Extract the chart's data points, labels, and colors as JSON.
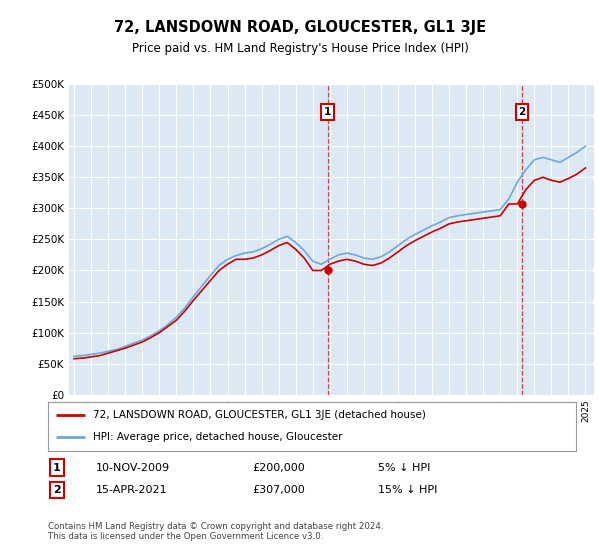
{
  "title": "72, LANSDOWN ROAD, GLOUCESTER, GL1 3JE",
  "subtitle": "Price paid vs. HM Land Registry's House Price Index (HPI)",
  "legend_line1": "72, LANSDOWN ROAD, GLOUCESTER, GL1 3JE (detached house)",
  "legend_line2": "HPI: Average price, detached house, Gloucester",
  "sale1_label": "1",
  "sale1_date": "10-NOV-2009",
  "sale1_price": "£200,000",
  "sale1_hpi": "5% ↓ HPI",
  "sale1_x": 2009.87,
  "sale1_y": 200000,
  "sale2_label": "2",
  "sale2_date": "15-APR-2021",
  "sale2_price": "£307,000",
  "sale2_hpi": "15% ↓ HPI",
  "sale2_x": 2021.29,
  "sale2_y": 307000,
  "footer": "Contains HM Land Registry data © Crown copyright and database right 2024.\nThis data is licensed under the Open Government Licence v3.0.",
  "hpi_color": "#6fa8d6",
  "price_color": "#cc0000",
  "marker_color": "#cc0000",
  "vline_color": "#cc4444",
  "box_color": "#cc0000",
  "ylim": [
    0,
    500000
  ],
  "xlim": [
    1994.7,
    2025.5
  ],
  "yticks": [
    0,
    50000,
    100000,
    150000,
    200000,
    250000,
    300000,
    350000,
    400000,
    450000,
    500000
  ],
  "background_color": "#dce9f5",
  "grid_color": "#ffffff",
  "hpi_data_x": [
    1995,
    1995.5,
    1996,
    1996.5,
    1997,
    1997.5,
    1998,
    1998.5,
    1999,
    1999.5,
    2000,
    2000.5,
    2001,
    2001.5,
    2002,
    2002.5,
    2003,
    2003.5,
    2004,
    2004.5,
    2005,
    2005.5,
    2006,
    2006.5,
    2007,
    2007.5,
    2008,
    2008.5,
    2009,
    2009.5,
    2010,
    2010.5,
    2011,
    2011.5,
    2012,
    2012.5,
    2013,
    2013.5,
    2014,
    2014.5,
    2015,
    2015.5,
    2016,
    2016.5,
    2017,
    2017.5,
    2018,
    2018.5,
    2019,
    2019.5,
    2020,
    2020.5,
    2021,
    2021.5,
    2022,
    2022.5,
    2023,
    2023.5,
    2024,
    2024.5,
    2025
  ],
  "hpi_data_y": [
    62000,
    63000,
    65000,
    67000,
    70000,
    73000,
    78000,
    83000,
    88000,
    95000,
    103000,
    113000,
    125000,
    140000,
    158000,
    175000,
    192000,
    208000,
    218000,
    224000,
    228000,
    230000,
    235000,
    242000,
    250000,
    255000,
    245000,
    232000,
    215000,
    210000,
    218000,
    225000,
    228000,
    225000,
    220000,
    218000,
    222000,
    230000,
    240000,
    250000,
    258000,
    265000,
    272000,
    278000,
    285000,
    288000,
    290000,
    292000,
    294000,
    296000,
    298000,
    315000,
    342000,
    362000,
    378000,
    382000,
    378000,
    374000,
    382000,
    390000,
    400000
  ],
  "price_data_x": [
    1995,
    1995.5,
    1996,
    1996.5,
    1997,
    1997.5,
    1998,
    1998.5,
    1999,
    1999.5,
    2000,
    2000.5,
    2001,
    2001.5,
    2002,
    2002.5,
    2003,
    2003.5,
    2004,
    2004.5,
    2005,
    2005.5,
    2006,
    2006.5,
    2007,
    2007.5,
    2008,
    2008.5,
    2009,
    2009.5,
    2010,
    2010.5,
    2011,
    2011.5,
    2012,
    2012.5,
    2013,
    2013.5,
    2014,
    2014.5,
    2015,
    2015.5,
    2016,
    2016.5,
    2017,
    2017.5,
    2018,
    2018.5,
    2019,
    2019.5,
    2020,
    2020.5,
    2021,
    2021.5,
    2022,
    2022.5,
    2023,
    2023.5,
    2024,
    2024.5,
    2025
  ],
  "price_data_y": [
    58000,
    59000,
    61000,
    63000,
    67000,
    71000,
    75000,
    80000,
    85000,
    92000,
    100000,
    110000,
    120000,
    135000,
    152000,
    168000,
    184000,
    200000,
    210000,
    218000,
    218000,
    220000,
    225000,
    232000,
    240000,
    245000,
    234000,
    220000,
    200000,
    200000,
    210000,
    215000,
    218000,
    215000,
    210000,
    208000,
    212000,
    220000,
    230000,
    240000,
    248000,
    255000,
    262000,
    268000,
    275000,
    278000,
    280000,
    282000,
    284000,
    286000,
    288000,
    307000,
    307000,
    330000,
    345000,
    350000,
    345000,
    342000,
    348000,
    355000,
    365000
  ]
}
